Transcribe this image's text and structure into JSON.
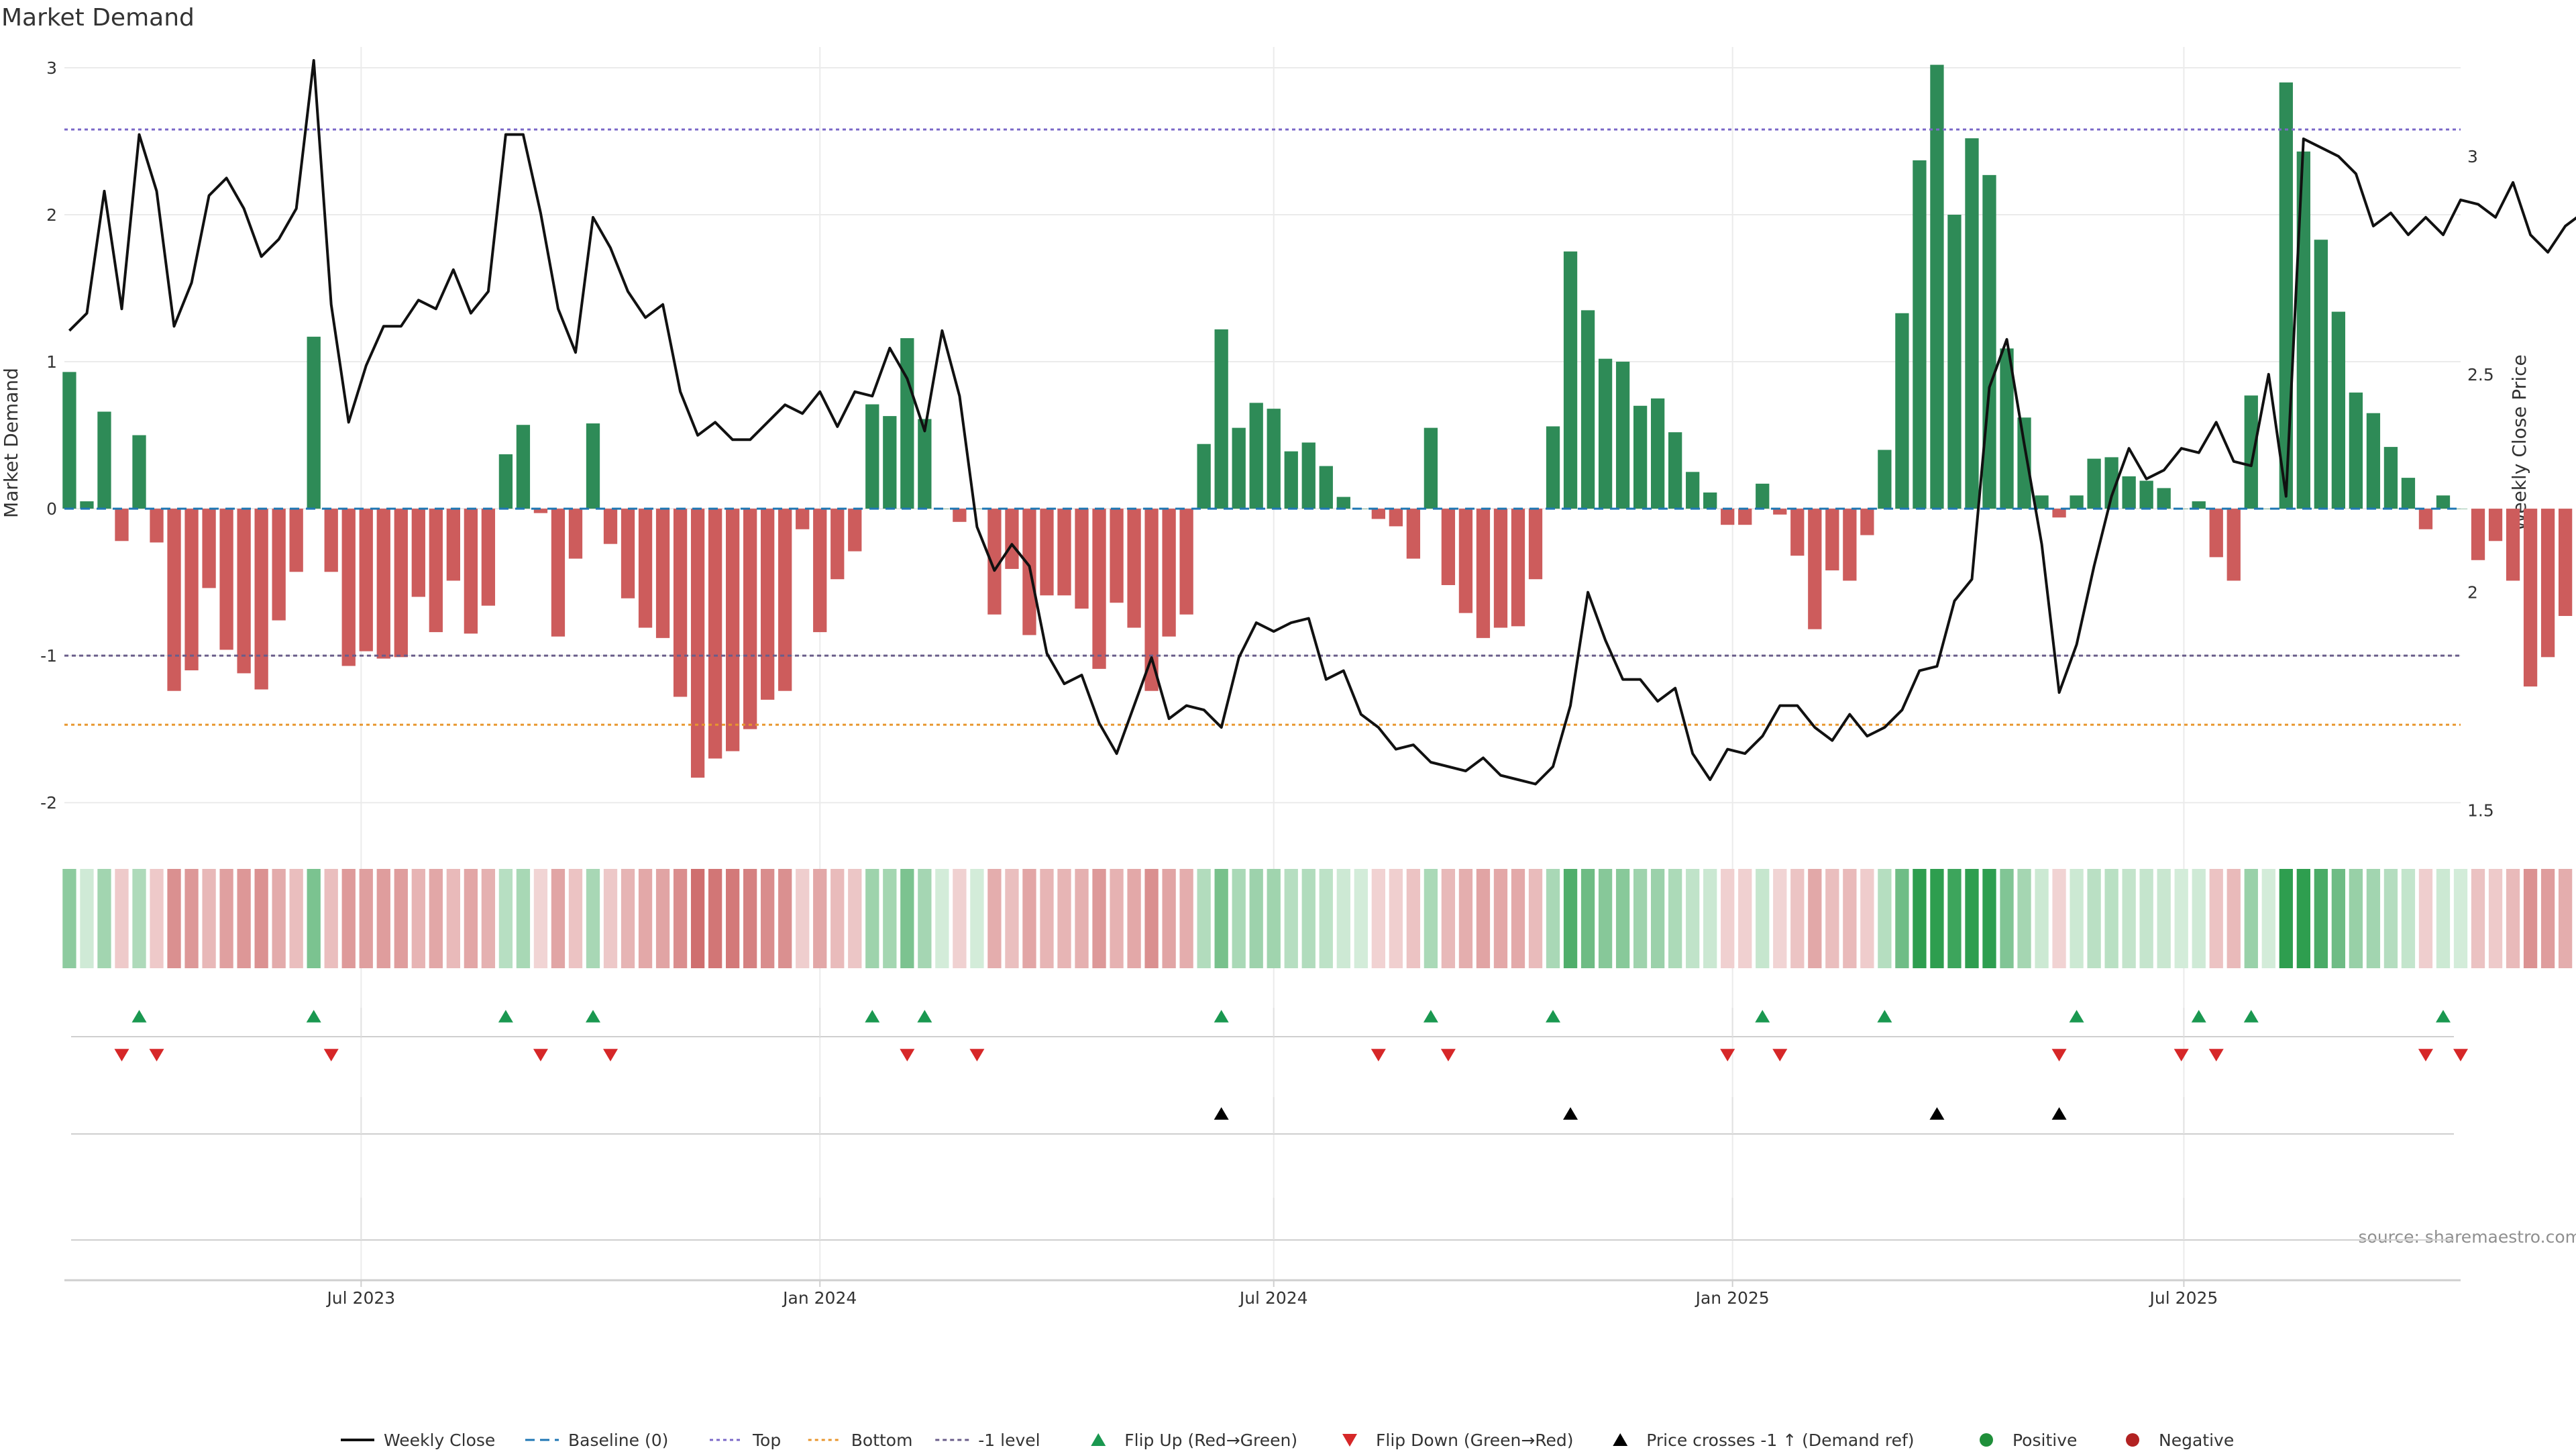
{
  "title": "Market Demand",
  "source": "source: sharemaestro.com",
  "colors": {
    "bar_pos": "#2e8b57",
    "bar_neg": "#cd5c5c",
    "price_line": "#111111",
    "top_line": "#7b68c8",
    "bottom_line": "#e8962e",
    "minus1_line": "#6a5d8a",
    "baseline": "#1f77b4",
    "flip_up": "#1a9850",
    "flip_down": "#d62728",
    "cross": "#000000",
    "positive": "#1f8f3a",
    "negative": "#b22222",
    "heat_pos_strong": "#2e9e4f",
    "heat_pos_weak": "#d3ecd9",
    "heat_neg_strong": "#c85a5a",
    "heat_neg_weak": "#f2d6d6",
    "grid": "#ebebeb",
    "axis": "#cfcfcf",
    "text": "#333333"
  },
  "chart_data": {
    "type": "bar",
    "title": "Market Demand",
    "ylabel": "Market Demand",
    "y2label": "Weekly Close Price",
    "ylim": [
      -2.2,
      3.05
    ],
    "y2lim": [
      1.45,
      3.22
    ],
    "yticks": [
      3,
      2,
      1,
      0,
      -1,
      -2
    ],
    "y2ticks": [
      3,
      2.5,
      2,
      1.5
    ],
    "x_start": "2023-03-04",
    "x_end": "2025-10-20",
    "x_ticks": [
      {
        "date": "2023-07-01",
        "label": "Jul 2023"
      },
      {
        "date": "2024-01-01",
        "label": "Jan 2024"
      },
      {
        "date": "2024-07-01",
        "label": "Jul 2024"
      },
      {
        "date": "2025-01-01",
        "label": "Jan 2025"
      },
      {
        "date": "2025-07-01",
        "label": "Jul 2025"
      }
    ],
    "first_week": "2023-03-06",
    "levels": {
      "top": 2.58,
      "bottom": -1.47,
      "minus_one": -1.0,
      "baseline": 0
    },
    "demand": [
      0.93,
      0.05,
      0.66,
      -0.22,
      0.5,
      -0.23,
      -1.24,
      -1.1,
      -0.54,
      -0.96,
      -1.12,
      -1.23,
      -0.76,
      -0.43,
      1.17,
      -0.43,
      -1.07,
      -0.97,
      -1.02,
      -1.01,
      -0.6,
      -0.84,
      -0.49,
      -0.85,
      -0.66,
      0.37,
      0.57,
      -0.03,
      -0.87,
      -0.34,
      0.58,
      -0.24,
      -0.61,
      -0.81,
      -0.88,
      -1.28,
      -1.83,
      -1.7,
      -1.65,
      -1.5,
      -1.3,
      -1.24,
      -0.14,
      -0.84,
      -0.48,
      -0.29,
      0.71,
      0.63,
      1.16,
      0.61,
      0.0,
      -0.09,
      0.0,
      -0.72,
      -0.41,
      -0.86,
      -0.59,
      -0.59,
      -0.68,
      -1.09,
      -0.64,
      -0.81,
      -1.24,
      -0.87,
      -0.72,
      0.44,
      1.22,
      0.55,
      0.72,
      0.68,
      0.39,
      0.45,
      0.29,
      0.08,
      0.0,
      -0.07,
      -0.12,
      -0.34,
      0.55,
      -0.52,
      -0.71,
      -0.88,
      -0.81,
      -0.8,
      -0.48,
      0.56,
      1.75,
      1.35,
      1.02,
      1.0,
      0.7,
      0.75,
      0.52,
      0.25,
      0.11,
      -0.11,
      -0.11,
      0.17,
      -0.04,
      -0.32,
      -0.82,
      -0.42,
      -0.49,
      -0.18,
      0.4,
      1.33,
      2.37,
      3.02,
      2.0,
      2.52,
      2.27,
      1.09,
      0.62,
      0.09,
      -0.06,
      0.09,
      0.34,
      0.35,
      0.22,
      0.19,
      0.14,
      0.0,
      0.05,
      -0.33,
      -0.49,
      0.77,
      0.0,
      2.9,
      2.43,
      1.83,
      1.34,
      0.79,
      0.65,
      0.42,
      0.21,
      -0.14,
      0.09,
      0.0,
      -0.35,
      -0.22,
      -0.49,
      -1.21,
      -1.01,
      -0.73
    ],
    "price": [
      2.6,
      2.64,
      2.92,
      2.65,
      3.05,
      2.92,
      2.61,
      2.71,
      2.91,
      2.95,
      2.88,
      2.77,
      2.81,
      2.88,
      3.22,
      2.66,
      2.39,
      2.52,
      2.61,
      2.61,
      2.67,
      2.65,
      2.74,
      2.64,
      2.69,
      3.05,
      3.05,
      2.87,
      2.65,
      2.55,
      2.86,
      2.79,
      2.69,
      2.63,
      2.66,
      2.46,
      2.36,
      2.39,
      2.35,
      2.35,
      2.39,
      2.43,
      2.41,
      2.46,
      2.38,
      2.46,
      2.45,
      2.56,
      2.49,
      2.37,
      2.6,
      2.45,
      2.15,
      2.05,
      2.11,
      2.06,
      1.86,
      1.79,
      1.81,
      1.7,
      1.63,
      1.74,
      1.85,
      1.71,
      1.74,
      1.73,
      1.69,
      1.85,
      1.93,
      1.91,
      1.93,
      1.94,
      1.8,
      1.82,
      1.72,
      1.69,
      1.64,
      1.65,
      1.61,
      1.6,
      1.59,
      1.62,
      1.58,
      1.57,
      1.56,
      1.6,
      1.74,
      2.0,
      1.89,
      1.8,
      1.8,
      1.75,
      1.78,
      1.63,
      1.57,
      1.64,
      1.63,
      1.67,
      1.74,
      1.74,
      1.69,
      1.66,
      1.72,
      1.67,
      1.69,
      1.73,
      1.82,
      1.83,
      1.98,
      2.03,
      2.47,
      2.58,
      2.34,
      2.11,
      1.77,
      1.88,
      2.06,
      2.22,
      2.33,
      2.26,
      2.28,
      2.33,
      2.32,
      2.39,
      2.3,
      2.29,
      2.5,
      2.22,
      3.04,
      3.02,
      3.0,
      2.96,
      2.84,
      2.87,
      2.82,
      2.86,
      2.82,
      2.9,
      2.89,
      2.86,
      2.94,
      2.82,
      2.78,
      2.84,
      2.87
    ],
    "flip_up_weeks": [
      4,
      14,
      25,
      30,
      46,
      49,
      66,
      78,
      85,
      97,
      104,
      115,
      122,
      125,
      136
    ],
    "flip_down_weeks": [
      3,
      5,
      15,
      27,
      31,
      48,
      52,
      75,
      79,
      95,
      98,
      114,
      121,
      123,
      135,
      137
    ],
    "cross_up_weeks": [
      66,
      86,
      107,
      114
    ],
    "legend": [
      "Weekly Close",
      "Baseline (0)",
      "Top",
      "Bottom",
      "-1 level",
      "Flip Up (Red→Green)",
      "Flip Down (Green→Red)",
      "Price crosses -1 ↑ (Demand ref)",
      "Positive",
      "Negative"
    ]
  }
}
